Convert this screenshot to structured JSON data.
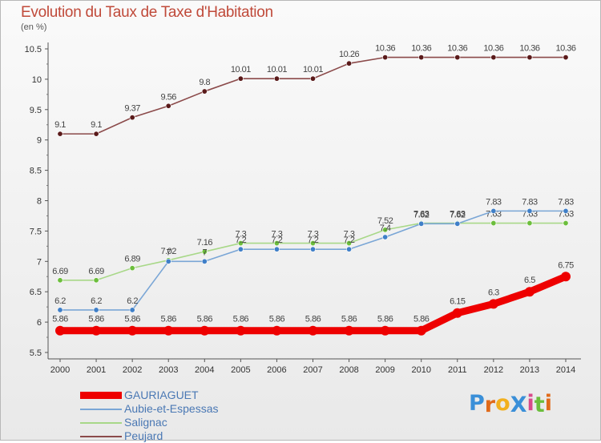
{
  "page": {
    "title": "Evolution du Taux de Taxe d'Habitation",
    "unit": "(en %)",
    "logo_text": "ProXiti"
  },
  "chart_data": {
    "type": "line",
    "title": "Evolution du Taux de Taxe d'Habitation",
    "ylabel": "(en %)",
    "xlabel": "",
    "ylim": [
      5.5,
      10.5
    ],
    "yticks": [
      "5.5",
      "6",
      "6.5",
      "7",
      "7.5",
      "8",
      "8.5",
      "9",
      "9.5",
      "10",
      "10.5"
    ],
    "x": [
      "2000",
      "2001",
      "2002",
      "2003",
      "2004",
      "2005",
      "2006",
      "2007",
      "2008",
      "2009",
      "2010",
      "2011",
      "2012",
      "2013",
      "2014"
    ],
    "grid": false,
    "legend_position": "bottom-left",
    "series": [
      {
        "name": "Peujard",
        "color": "#8b4a4a",
        "marker_color": "#5a1a1a",
        "emphasis": false,
        "values": [
          9.1,
          9.1,
          9.37,
          9.56,
          9.8,
          10.01,
          10.01,
          10.01,
          10.26,
          10.36,
          10.36,
          10.36,
          10.36,
          10.36,
          10.36
        ],
        "labels": [
          "9.1",
          "9.1",
          "9.37",
          "9.56",
          "9.8",
          "10.01",
          "10.01",
          "10.01",
          "10.26",
          "10.36",
          "10.36",
          "10.36",
          "10.36",
          "10.36",
          "10.36"
        ]
      },
      {
        "name": "Salignac",
        "color": "#a8d888",
        "marker_color": "#6cbe3c",
        "emphasis": false,
        "values": [
          6.69,
          6.69,
          6.89,
          7.02,
          7.16,
          7.3,
          7.3,
          7.3,
          7.3,
          7.52,
          7.63,
          7.63,
          7.63,
          7.63,
          7.63
        ],
        "labels": [
          "6.69",
          "6.69",
          "6.89",
          "7.02",
          "7.16",
          "7.3",
          "7.3",
          "7.3",
          "7.3",
          "7.52",
          "7.63",
          "7.63",
          "7.63",
          "7.63",
          "7.63"
        ]
      },
      {
        "name": "Aubie-et-Espessas",
        "color": "#7aa6d6",
        "marker_color": "#3f7fc8",
        "emphasis": false,
        "values": [
          6.2,
          6.2,
          6.2,
          7.0,
          7.0,
          7.2,
          7.2,
          7.2,
          7.2,
          7.4,
          7.62,
          7.62,
          7.83,
          7.83,
          7.83
        ],
        "labels": [
          "6.2",
          "6.2",
          "6.2",
          "7",
          "7",
          "7.2",
          "7.2",
          "7.2",
          "7.2",
          "7.4",
          "7.62",
          "7.62",
          "7.83",
          "7.83",
          "7.83"
        ]
      },
      {
        "name": "GAURIAGUET",
        "color": "#ee0000",
        "marker_color": "#ee0000",
        "emphasis": true,
        "values": [
          5.86,
          5.86,
          5.86,
          5.86,
          5.86,
          5.86,
          5.86,
          5.86,
          5.86,
          5.86,
          5.86,
          6.15,
          6.3,
          6.5,
          6.75
        ],
        "labels": [
          "5.86",
          "5.86",
          "5.86",
          "5.86",
          "5.86",
          "5.86",
          "5.86",
          "5.86",
          "5.86",
          "5.86",
          "5.86",
          "6.15",
          "6.3",
          "6.5",
          "6.75"
        ]
      }
    ],
    "legend_order": [
      "GAURIAGUET",
      "Aubie-et-Espessas",
      "Salignac",
      "Peujard"
    ]
  },
  "legend": [
    {
      "label": "GAURIAGUET",
      "color": "#ee0000",
      "thick": true
    },
    {
      "label": "Aubie-et-Espessas",
      "color": "#7aa6d6",
      "thick": false
    },
    {
      "label": "Salignac",
      "color": "#a8d888",
      "thick": false
    },
    {
      "label": "Peujard",
      "color": "#8b4a4a",
      "thick": false
    }
  ],
  "logo_colors": [
    "#3a8fd8",
    "#e06a1a",
    "#f2b01e",
    "#3a8fd8",
    "#d84a8a",
    "#6cbe3c",
    "#e06a1a"
  ]
}
